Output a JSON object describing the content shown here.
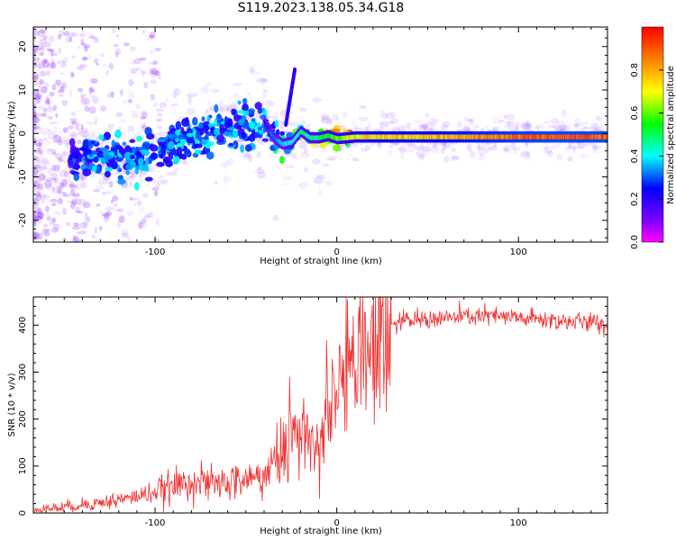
{
  "title": "S119.2023.138.05.34.G18",
  "chart_data": [
    {
      "type": "heatmap",
      "title": "S119.2023.138.05.34.G18",
      "xlabel": "Height of straight line (km)",
      "ylabel": "Frequency (Hz)",
      "xlim": [
        -167,
        149
      ],
      "ylim": [
        -25,
        24.5
      ],
      "x_ticks": [
        -100,
        0,
        100
      ],
      "y_ticks": [
        -20,
        -10,
        0,
        10,
        20
      ],
      "grid": false,
      "colorbar": {
        "label": "Normalized spectral amplitude",
        "range": [
          0,
          1
        ],
        "ticks": [
          0.0,
          0.2,
          0.4,
          0.6,
          0.8
        ],
        "colormap": [
          "#ff00ff",
          "#7f00ff",
          "#0000ff",
          "#00ffff",
          "#00ff00",
          "#ffff00",
          "#ff7f00",
          "#ff0000"
        ]
      },
      "ridge": {
        "x": [
          -167,
          -150,
          -140,
          -130,
          -120,
          -110,
          -100,
          -90,
          -80,
          -70,
          -60,
          -50,
          -40,
          -35,
          -30,
          -25,
          -20,
          -15,
          -10,
          -5,
          0,
          10,
          20,
          40,
          60,
          80,
          100,
          120,
          149
        ],
        "y": [
          -5,
          -5.5,
          -5.2,
          -5,
          -5.5,
          -6,
          -4,
          -2,
          -1,
          0.5,
          1,
          2,
          2.5,
          -1,
          -2.5,
          -2,
          0.5,
          -1,
          -1,
          -0.5,
          -1.2,
          -0.8,
          -0.8,
          -0.8,
          -0.8,
          -0.8,
          -0.8,
          -0.8,
          -0.8
        ],
        "amplitude": [
          0.15,
          0.2,
          0.25,
          0.3,
          0.3,
          0.3,
          0.3,
          0.3,
          0.3,
          0.3,
          0.3,
          0.3,
          0.3,
          0.35,
          0.4,
          0.45,
          0.5,
          0.5,
          0.55,
          0.6,
          0.65,
          0.75,
          0.8,
          0.8,
          0.85,
          0.9,
          0.95,
          0.97,
          0.97
        ]
      }
    },
    {
      "type": "line",
      "xlabel": "Height of straight line (km)",
      "ylabel": "SNR (10 * v/v)",
      "xlim": [
        -167,
        149
      ],
      "ylim": [
        0,
        460
      ],
      "x_ticks": [
        -100,
        0,
        100
      ],
      "y_ticks": [
        0,
        100,
        200,
        300,
        400
      ],
      "grid": false,
      "line_color": "#ee3333",
      "x": [
        -167,
        -150,
        -140,
        -130,
        -120,
        -110,
        -100,
        -90,
        -80,
        -70,
        -60,
        -50,
        -40,
        -30,
        -25,
        -20,
        -15,
        -10,
        -5,
        0,
        5,
        10,
        15,
        20,
        25,
        30,
        40,
        60,
        80,
        100,
        120,
        140,
        149
      ],
      "y": [
        8,
        12,
        18,
        22,
        28,
        35,
        45,
        55,
        70,
        60,
        65,
        70,
        80,
        130,
        190,
        150,
        160,
        120,
        230,
        280,
        300,
        310,
        330,
        340,
        380,
        400,
        410,
        415,
        420,
        415,
        410,
        405,
        400
      ]
    }
  ]
}
